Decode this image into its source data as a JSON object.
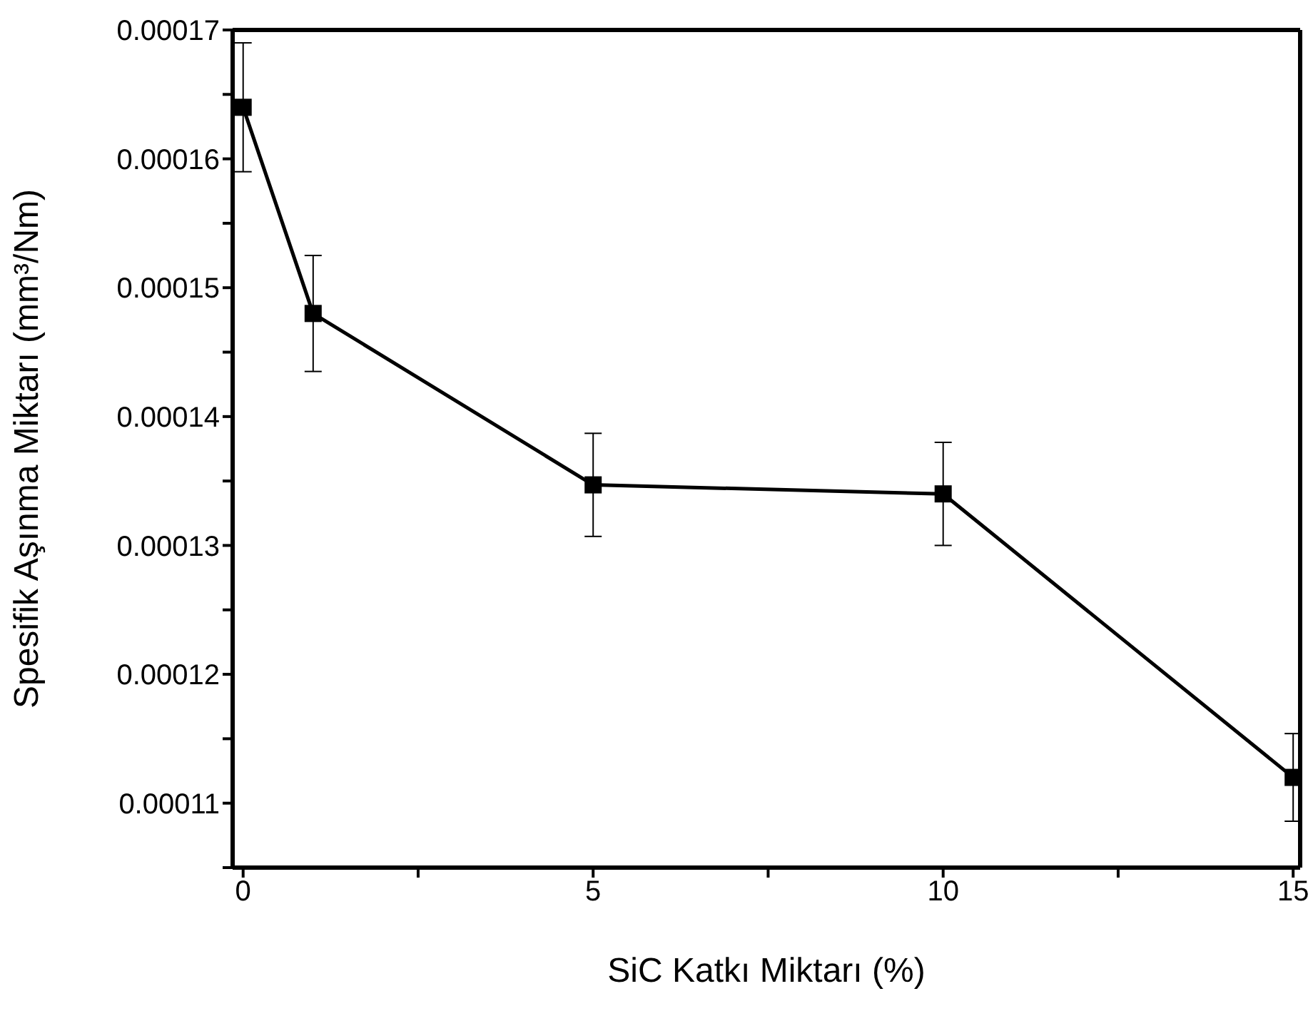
{
  "chart_data": {
    "type": "line",
    "xlabel": "SiC Katkı Miktarı (%)",
    "ylabel": "Spesifik Aşınma Miktarı (mm³/Nm)",
    "x": [
      0,
      1,
      5,
      10,
      15
    ],
    "series": [
      {
        "color": "#000000",
        "values": [
          0.000164,
          0.000148,
          0.0001347,
          0.000134,
          0.000112
        ],
        "errors": [
          5e-06,
          4.5e-06,
          4e-06,
          4e-06,
          3.4e-06
        ]
      }
    ],
    "xlim": [
      -0.15,
      15.1
    ],
    "xticks": [
      0,
      {
        "value": 2.5,
        "label": null
      },
      5,
      {
        "value": 7.5,
        "label": null
      },
      10,
      {
        "value": 12.5,
        "label": null
      },
      15
    ],
    "ylim": [
      0.000105,
      0.00017
    ],
    "yticks": [
      {
        "value": 0.000105,
        "label": null
      },
      0.00011,
      {
        "value": 0.000115,
        "label": null
      },
      0.00012,
      {
        "value": 0.000125,
        "label": null
      },
      0.00013,
      {
        "value": 0.000135,
        "label": null
      },
      0.00014,
      {
        "value": 0.000145,
        "label": null
      },
      0.00015,
      {
        "value": 0.000155,
        "label": null
      },
      0.00016,
      {
        "value": 0.000165,
        "label": null
      },
      0.00017
    ],
    "grid": false,
    "legend": false,
    "marker": "square",
    "line_style": "solid"
  }
}
